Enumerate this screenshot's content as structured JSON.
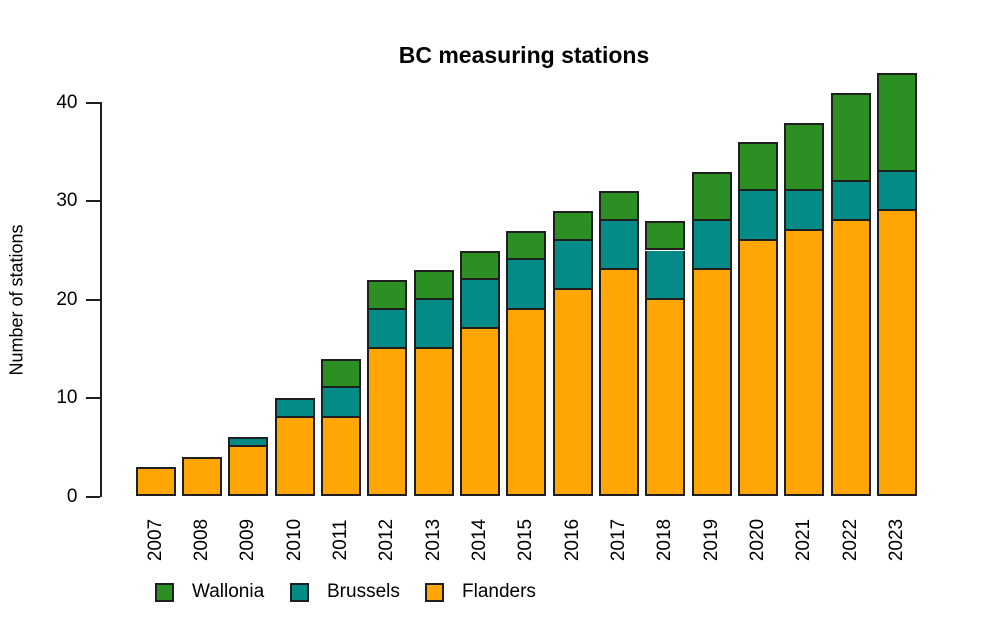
{
  "figure": {
    "title": "BC measuring stations",
    "ylabel": "Number of stations"
  },
  "chart_data": {
    "type": "bar",
    "stacked": true,
    "title": "BC measuring stations",
    "xlabel": "",
    "ylabel": "Number of stations",
    "categories": [
      "2007",
      "2008",
      "2009",
      "2010",
      "2011",
      "2012",
      "2013",
      "2014",
      "2015",
      "2016",
      "2017",
      "2018",
      "2019",
      "2020",
      "2021",
      "2022",
      "2023"
    ],
    "series": [
      {
        "name": "Flanders",
        "color": "#FFA504",
        "values": [
          3,
          4,
          5,
          8,
          8,
          15,
          15,
          17,
          19,
          21,
          23,
          20,
          23,
          26,
          27,
          28,
          29
        ]
      },
      {
        "name": "Brussels",
        "color": "#058B87",
        "values": [
          0,
          0,
          1,
          2,
          3,
          4,
          5,
          5,
          5,
          5,
          5,
          5,
          5,
          5,
          4,
          4,
          4
        ]
      },
      {
        "name": "Wallonia",
        "color": "#2B8F24",
        "values": [
          0,
          0,
          0,
          0,
          3,
          3,
          3,
          3,
          3,
          3,
          3,
          3,
          5,
          5,
          7,
          9,
          10
        ]
      }
    ],
    "stack_order_bottom_to_top": [
      "Flanders",
      "Brussels",
      "Wallonia"
    ],
    "ylim": [
      0,
      40
    ],
    "yticks": [
      0,
      10,
      20,
      30,
      40
    ],
    "grid": false,
    "bar_border_color": "#1f1f1f",
    "legend": {
      "position": "bottom",
      "items": [
        {
          "label": "Wallonia",
          "color": "#2B8F24"
        },
        {
          "label": "Brussels",
          "color": "#058B87"
        },
        {
          "label": "Flanders",
          "color": "#FFA504"
        }
      ]
    }
  }
}
